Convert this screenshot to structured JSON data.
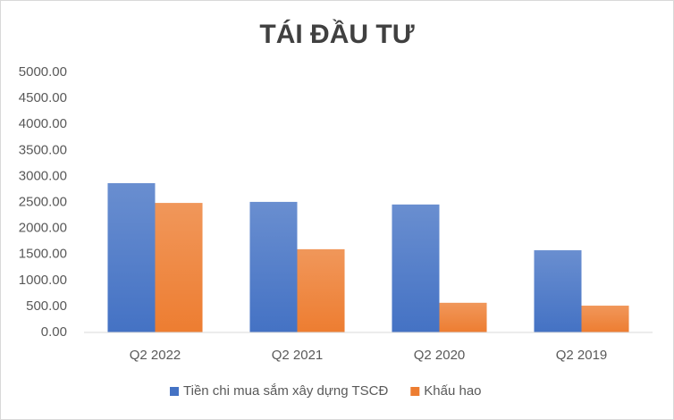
{
  "chart_data": {
    "type": "bar",
    "title": "TÁI ĐẦU TƯ",
    "categories": [
      "Q2 2022",
      "Q2 2021",
      "Q2 2020",
      "Q2 2019"
    ],
    "series": [
      {
        "name": "Tiền chi mua sắm xây dựng TSCĐ",
        "color": "#4472c4",
        "values": [
          2870,
          2510,
          2460,
          1580
        ]
      },
      {
        "name": "Khấu hao",
        "color": "#ed7d31",
        "values": [
          2490,
          1600,
          570,
          515
        ]
      }
    ],
    "ylim": [
      0,
      5000
    ],
    "yticks": [
      {
        "value": 0,
        "label": "0.00"
      },
      {
        "value": 500,
        "label": "500.00"
      },
      {
        "value": 1000,
        "label": "1000.00"
      },
      {
        "value": 1500,
        "label": "1500.00"
      },
      {
        "value": 2000,
        "label": "2000.00"
      },
      {
        "value": 2500,
        "label": "2500.00"
      },
      {
        "value": 3000,
        "label": "3000.00"
      },
      {
        "value": 3500,
        "label": "3500.00"
      },
      {
        "value": 4000,
        "label": "4000.00"
      },
      {
        "value": 4500,
        "label": "4500.00"
      },
      {
        "value": 5000,
        "label": "5000.00"
      }
    ],
    "grid": false,
    "legend": "bottom"
  }
}
